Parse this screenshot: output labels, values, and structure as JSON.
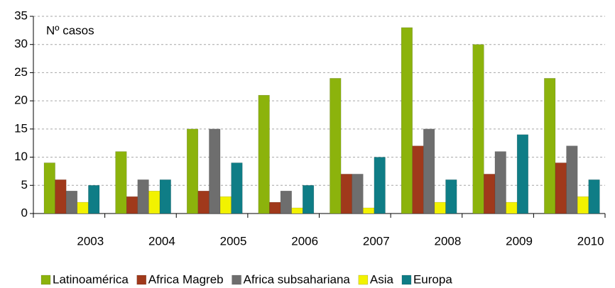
{
  "chart_data": {
    "type": "bar",
    "annotation": "Nº casos",
    "categories": [
      "2003",
      "2004",
      "2005",
      "2006",
      "2007",
      "2008",
      "2009",
      "2010"
    ],
    "series": [
      {
        "name": "Latinoamérica",
        "color": "#8cb30c",
        "values": [
          9,
          11,
          15,
          21,
          24,
          33,
          30,
          24
        ]
      },
      {
        "name": "Africa Magreb",
        "color": "#a0391b",
        "values": [
          6,
          3,
          4,
          2,
          7,
          12,
          7,
          9
        ]
      },
      {
        "name": "Africa subsahariana",
        "color": "#6e6e6e",
        "values": [
          4,
          6,
          15,
          4,
          7,
          15,
          11,
          12
        ]
      },
      {
        "name": "Asia",
        "color": "#f2f200",
        "values": [
          2,
          4,
          3,
          1,
          1,
          2,
          2,
          3
        ]
      },
      {
        "name": "Europa",
        "color": "#0f7d86",
        "values": [
          5,
          6,
          9,
          5,
          10,
          6,
          14,
          6
        ]
      }
    ],
    "ylim": [
      0,
      35
    ],
    "yticks": [
      0,
      5,
      10,
      15,
      20,
      25,
      30,
      35
    ],
    "grid": true,
    "legend": "bottom"
  }
}
